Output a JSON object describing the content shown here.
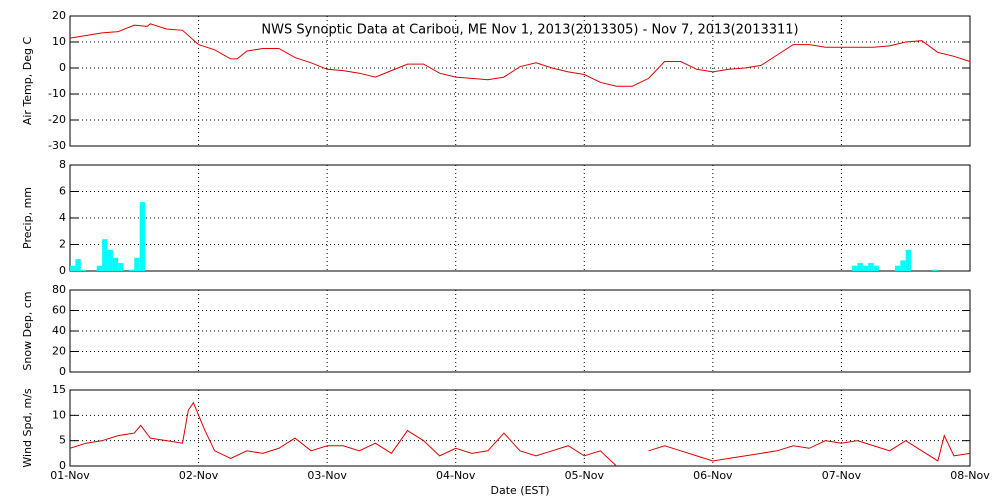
{
  "chart_data": [
    {
      "type": "line",
      "title": "NWS Synoptic Data at Caribou, ME   Nov  1, 2013(2013305) - Nov  7, 2013(2013311)",
      "ylabel": "Air Temp, Deg C",
      "ylim": [
        -30,
        20
      ],
      "yticks": [
        -30,
        -20,
        -10,
        0,
        10,
        20
      ],
      "grid": true,
      "x": [
        0,
        0.125,
        0.25,
        0.375,
        0.5,
        0.6,
        0.625,
        0.75,
        0.875,
        1.0,
        1.125,
        1.25,
        1.3,
        1.375,
        1.5,
        1.625,
        1.75,
        1.875,
        2.0,
        2.125,
        2.25,
        2.375,
        2.5,
        2.625,
        2.75,
        2.875,
        3.0,
        3.125,
        3.25,
        3.375,
        3.5,
        3.625,
        3.75,
        3.875,
        4.0,
        4.125,
        4.25,
        4.375,
        4.5,
        4.625,
        4.75,
        4.875,
        5.0,
        5.125,
        5.25,
        5.375,
        5.5,
        5.625,
        5.75,
        5.875,
        6.0,
        6.125,
        6.25,
        6.375,
        6.5,
        6.625,
        6.75,
        6.875,
        7.0
      ],
      "series": [
        {
          "name": "Air Temp",
          "color": "#e00000",
          "values": [
            11.5,
            12.5,
            13.5,
            14,
            16.5,
            16,
            17,
            15,
            14.5,
            9,
            7,
            3.5,
            3.5,
            6.5,
            7.5,
            7.5,
            4,
            2,
            -0.5,
            -1,
            -2,
            -3.5,
            -1,
            1.5,
            1.5,
            -2,
            -3.5,
            -4,
            -4.5,
            -3.5,
            0.5,
            2,
            0,
            -1.5,
            -2.5,
            -5.5,
            -7,
            -7,
            -4,
            2.5,
            2.5,
            -0.5,
            -1.5,
            -0.5,
            0,
            1,
            5,
            9,
            9,
            8,
            8,
            8,
            8,
            8.5,
            10,
            10.5,
            6,
            4.5,
            2.5
          ]
        }
      ]
    },
    {
      "type": "bar",
      "ylabel": "Precip, mm",
      "ylim": [
        0,
        8
      ],
      "yticks": [
        0,
        2,
        4,
        6,
        8
      ],
      "grid": true,
      "x": [
        0,
        0.042,
        0.083,
        0.208,
        0.25,
        0.292,
        0.333,
        0.375,
        0.458,
        0.5,
        0.542,
        6.083,
        6.125,
        6.167,
        6.208,
        6.25,
        6.417,
        6.458,
        6.5,
        6.708
      ],
      "series": [
        {
          "name": "Precip",
          "color": "#00ffff",
          "values": [
            0.4,
            0.9,
            0.1,
            0.4,
            2.4,
            1.6,
            1.0,
            0.6,
            0.1,
            1.0,
            5.2,
            0.4,
            0.6,
            0.4,
            0.6,
            0.4,
            0.4,
            0.8,
            1.6,
            0.1
          ]
        }
      ]
    },
    {
      "type": "line",
      "ylabel": "Snow Dep, cm",
      "ylim": [
        0,
        80
      ],
      "yticks": [
        0,
        20,
        40,
        60,
        80
      ],
      "grid": true,
      "x": [],
      "series": [
        {
          "name": "Snow Depth",
          "color": "#e00000",
          "values": []
        }
      ]
    },
    {
      "type": "line",
      "ylabel": "Wind Spd, m/s",
      "xlabel": "Date (EST)",
      "ylim": [
        0,
        15
      ],
      "yticks": [
        0,
        5,
        10,
        15
      ],
      "grid": true,
      "xlim": [
        0,
        7
      ],
      "xticks": [
        {
          "value": 0,
          "label": "01-Nov"
        },
        {
          "value": 1,
          "label": "02-Nov"
        },
        {
          "value": 2,
          "label": "03-Nov"
        },
        {
          "value": 3,
          "label": "04-Nov"
        },
        {
          "value": 4,
          "label": "05-Nov"
        },
        {
          "value": 5,
          "label": "06-Nov"
        },
        {
          "value": 6,
          "label": "07-Nov"
        },
        {
          "value": 7,
          "label": "08-Nov"
        }
      ],
      "x": [
        0,
        0.125,
        0.25,
        0.375,
        0.5,
        0.55,
        0.625,
        0.75,
        0.875,
        0.92,
        0.96,
        1.0,
        1.05,
        1.125,
        1.25,
        1.375,
        1.5,
        1.625,
        1.75,
        1.875,
        2.0,
        2.125,
        2.25,
        2.375,
        2.5,
        2.625,
        2.75,
        2.875,
        3.0,
        3.125,
        3.25,
        3.375,
        3.5,
        3.625,
        3.75,
        3.875,
        4.0,
        4.125,
        4.25,
        4.375,
        4.5,
        4.625,
        4.75,
        4.875,
        5.0,
        5.125,
        5.25,
        5.375,
        5.5,
        5.625,
        5.75,
        5.875,
        6.0,
        6.125,
        6.25,
        6.375,
        6.5,
        6.625,
        6.75,
        6.8,
        6.875,
        7.0
      ],
      "series": [
        {
          "name": "Wind Speed",
          "color": "#e00000",
          "values": [
            3.5,
            4.5,
            5,
            6,
            6.5,
            8,
            5.5,
            5,
            4.5,
            11,
            12.5,
            10,
            7,
            3,
            1.5,
            3,
            2.5,
            3.5,
            5.5,
            3,
            4,
            4,
            3,
            4.5,
            2.5,
            7,
            5,
            2,
            3.5,
            2.5,
            3,
            6.5,
            3,
            2,
            3,
            4,
            2,
            3,
            0,
            null,
            3,
            4,
            3,
            2,
            1,
            1.5,
            2,
            2.5,
            3,
            4,
            3.5,
            5,
            4.5,
            5,
            4,
            3,
            5,
            3,
            1,
            6,
            2,
            2.5
          ]
        }
      ]
    }
  ]
}
